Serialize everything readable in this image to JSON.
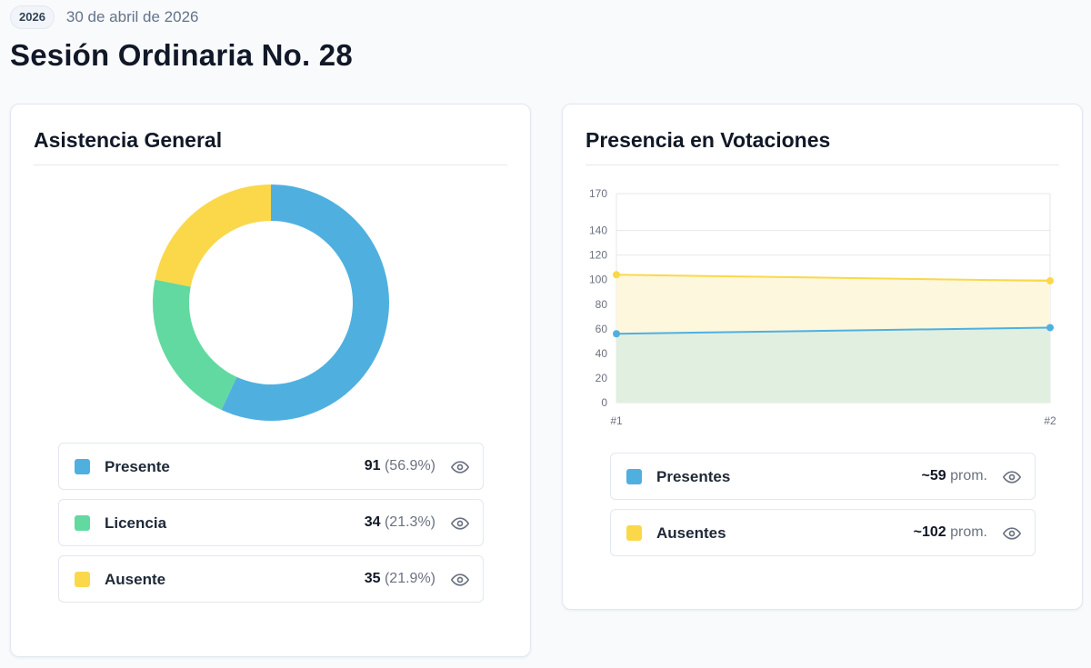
{
  "header": {
    "year_badge": "2026",
    "date": "30 de abril de 2026",
    "title": "Sesión Ordinaria No. 28"
  },
  "attendance": {
    "title": "Asistencia General",
    "items": [
      {
        "label": "Presente",
        "count": "91",
        "pct": "(56.9%)",
        "value": 91,
        "color": "#4fb0e0"
      },
      {
        "label": "Licencia",
        "count": "34",
        "pct": "(21.3%)",
        "value": 34,
        "color": "#62d9a0"
      },
      {
        "label": "Ausente",
        "count": "35",
        "pct": "(21.9%)",
        "value": 35,
        "color": "#fad84a"
      }
    ],
    "icons": [
      "eye-icon"
    ]
  },
  "votes": {
    "title": "Presencia en Votaciones",
    "legend": [
      {
        "label": "Presentes",
        "value": "~59",
        "suffix": "prom.",
        "color": "#4fb0e0"
      },
      {
        "label": "Ausentes",
        "value": "~102",
        "suffix": "prom.",
        "color": "#fad84a"
      }
    ]
  },
  "chart_data": {
    "type": "area",
    "categories": [
      "#1",
      "#2"
    ],
    "series": [
      {
        "name": "Presentes",
        "values": [
          56,
          61
        ],
        "color": "#4fb0e0",
        "fill": "#e1efe0"
      },
      {
        "name": "Ausentes",
        "values": [
          104,
          99
        ],
        "color": "#fad84a",
        "fill": "#fdf7dd"
      }
    ],
    "y_ticks": [
      0,
      20,
      40,
      60,
      80,
      100,
      120,
      140,
      170
    ],
    "ylim": [
      0,
      170
    ],
    "grid": true,
    "legend": "bottom"
  }
}
